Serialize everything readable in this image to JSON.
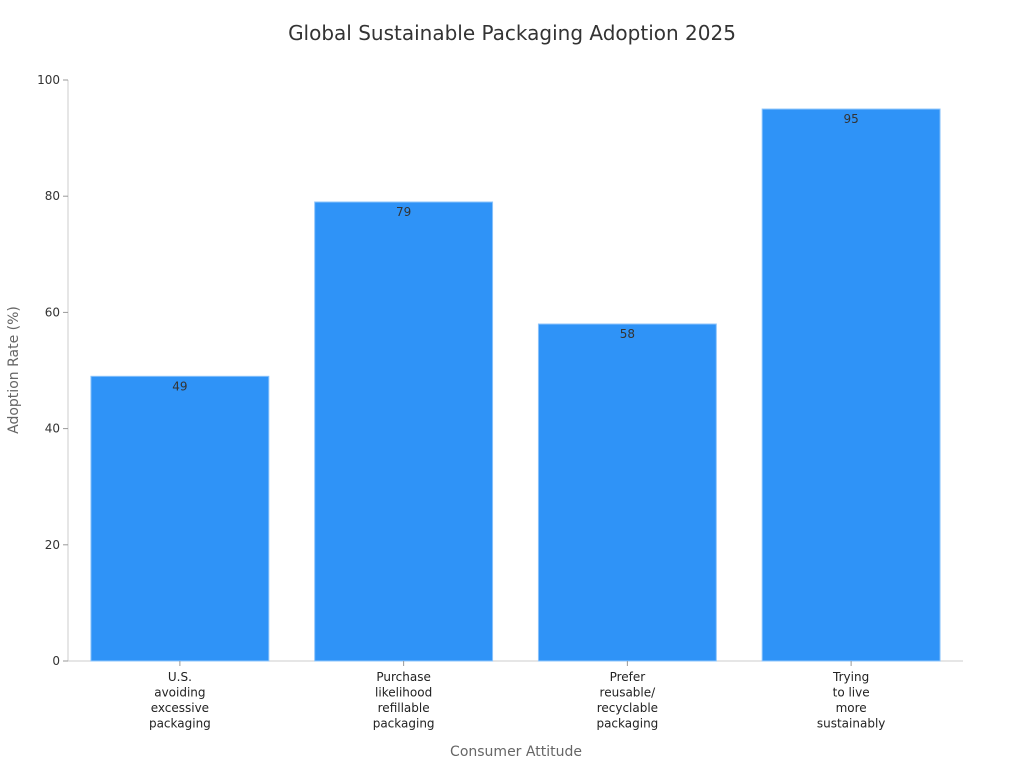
{
  "chart_data": {
    "type": "bar",
    "title": "Global Sustainable Packaging Adoption 2025",
    "xlabel": "Consumer Attitude",
    "ylabel": "Adoption Rate (%)",
    "ylim": [
      0,
      100
    ],
    "yticks": [
      0,
      20,
      40,
      60,
      80,
      100
    ],
    "grid": false,
    "categories": [
      [
        "U.S.",
        "avoiding",
        "excessive",
        "packaging"
      ],
      [
        "Purchase",
        "likelihood",
        "refillable",
        "packaging"
      ],
      [
        "Prefer",
        "reusable/",
        "recyclable",
        "packaging"
      ],
      [
        "Trying",
        "to live",
        "more",
        "sustainably"
      ]
    ],
    "values": [
      49,
      79,
      58,
      95
    ],
    "data_labels": [
      "49",
      "79",
      "58",
      "95"
    ],
    "bar_color": "#2f93f7"
  }
}
